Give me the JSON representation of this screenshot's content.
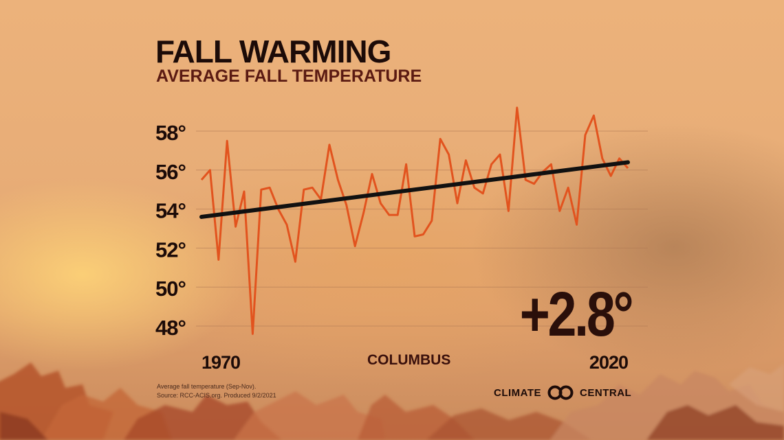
{
  "title": "FALL WARMING",
  "subtitle": "AVERAGE FALL TEMPERATURE",
  "location": "COLUMBUS",
  "change": "+2.8°",
  "footnote": {
    "line1": "Average fall temperature (Sep-Nov).",
    "line2": "Source: RCC-ACIS.org. Produced 9/2/2021"
  },
  "logo": {
    "left_word": "CLIMATE",
    "right_word": "CENTRAL"
  },
  "colors": {
    "series": "#e2531e",
    "trend": "#111111",
    "text_dark": "#1c0b08",
    "subtitle": "#5a1a12"
  },
  "chart_data": {
    "type": "line",
    "title": "FALL WARMING",
    "subtitle": "AVERAGE FALL TEMPERATURE",
    "x_tick_labels": [
      "1970",
      "2020"
    ],
    "y_tick_labels": [
      "48°",
      "50°",
      "52°",
      "54°",
      "56°",
      "58°"
    ],
    "xlim": [
      1970,
      2021
    ],
    "ylim": [
      47,
      59.5
    ],
    "grid": "horizontal",
    "series": [
      {
        "x": [
          1970,
          1971,
          1972,
          1973,
          1974,
          1975,
          1976,
          1977,
          1978,
          1979,
          1980,
          1981,
          1982,
          1983,
          1984,
          1985,
          1986,
          1987,
          1988,
          1989,
          1990,
          1991,
          1992,
          1993,
          1994,
          1995,
          1996,
          1997,
          1998,
          1999,
          2000,
          2001,
          2002,
          2003,
          2004,
          2005,
          2006,
          2007,
          2008,
          2009,
          2010,
          2011,
          2012,
          2013,
          2014,
          2015,
          2016,
          2017,
          2018,
          2019,
          2020,
          2021
        ],
        "values": [
          55.5,
          56.0,
          51.4,
          57.5,
          53.1,
          54.9,
          47.6,
          55.0,
          55.1,
          54.0,
          53.2,
          51.3,
          55.0,
          55.1,
          54.5,
          57.3,
          55.5,
          54.2,
          52.1,
          53.8,
          55.8,
          54.3,
          53.7,
          53.7,
          56.3,
          52.6,
          52.7,
          53.4,
          57.6,
          56.8,
          54.3,
          56.5,
          55.1,
          54.8,
          56.3,
          56.8,
          53.9,
          59.2,
          55.5,
          55.3,
          55.9,
          56.3,
          53.9,
          55.1,
          53.2,
          57.8,
          58.8,
          56.6,
          55.7,
          56.6,
          56.1,
          null
        ]
      }
    ],
    "trend": {
      "x": [
        1970,
        2020
      ],
      "values": [
        53.6,
        56.4
      ]
    }
  }
}
